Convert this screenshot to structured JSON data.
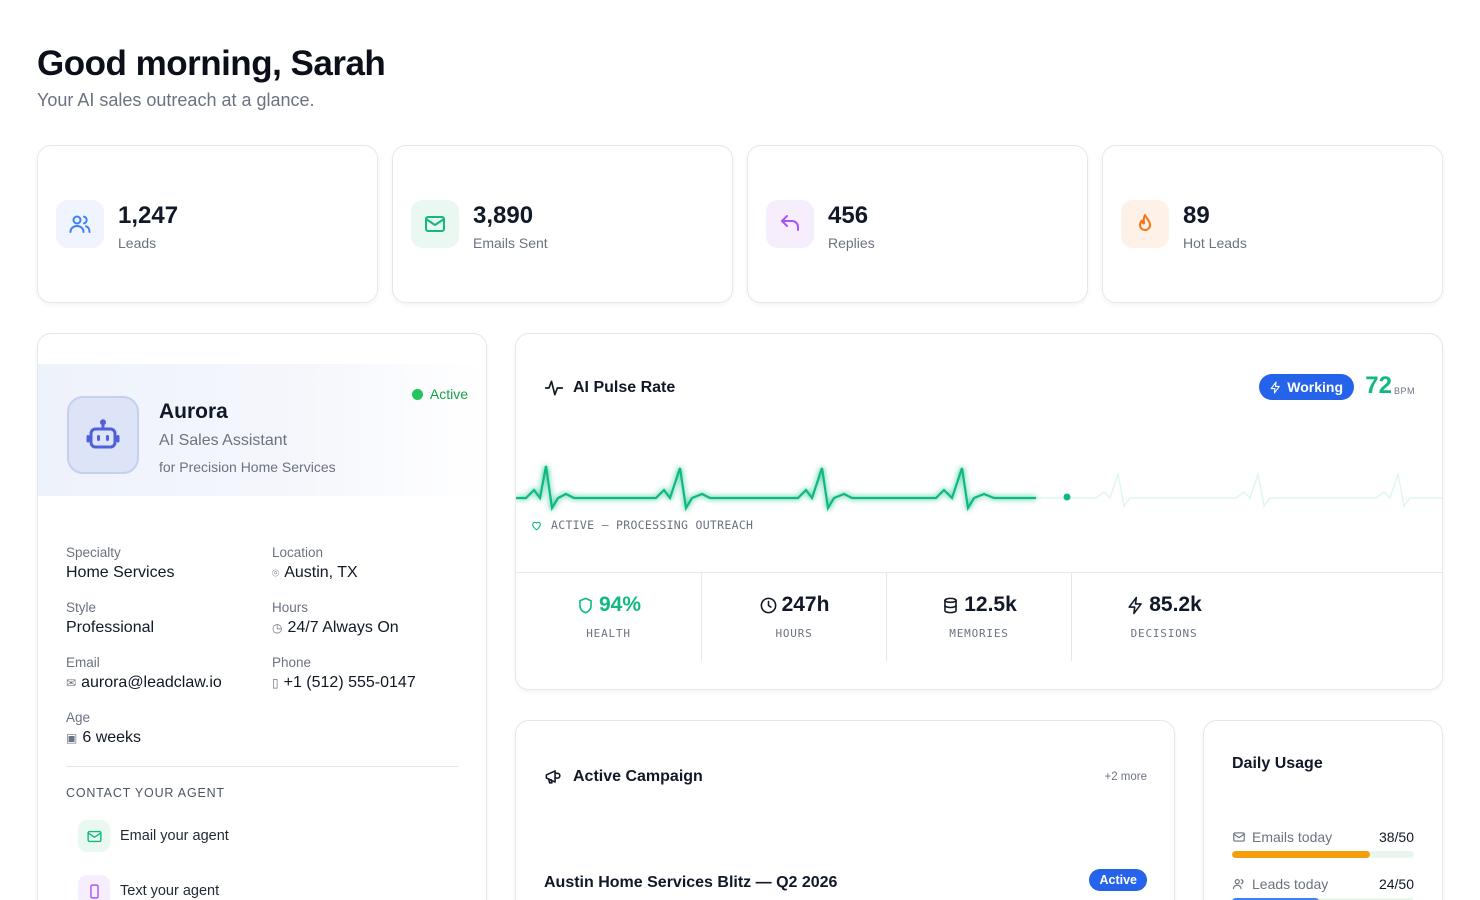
{
  "header": {
    "greeting": "Good morning, Sarah",
    "subtitle": "Your AI sales outreach at a glance."
  },
  "stats": [
    {
      "value": "1,247",
      "label": "Leads",
      "icon": "users-icon",
      "color": "#3b82f6",
      "bg": "#eff4fe"
    },
    {
      "value": "3,890",
      "label": "Emails Sent",
      "icon": "mail-icon",
      "color": "#10b981",
      "bg": "#e9f8f1"
    },
    {
      "value": "456",
      "label": "Replies",
      "icon": "reply-icon",
      "color": "#a855f7",
      "bg": "#f6eefd"
    },
    {
      "value": "89",
      "label": "Hot Leads",
      "icon": "flame-icon",
      "color": "#f97316",
      "bg": "#fef1e7"
    }
  ],
  "agent": {
    "name": "Aurora",
    "role": "AI Sales Assistant",
    "company": "for Precision Home Services",
    "status": "Active",
    "fields": {
      "specialty": {
        "label": "Specialty",
        "value": "Home Services"
      },
      "location": {
        "label": "Location",
        "value": "Austin, TX"
      },
      "style": {
        "label": "Style",
        "value": "Professional"
      },
      "hours": {
        "label": "Hours",
        "value": "24/7 Always On"
      },
      "email": {
        "label": "Email",
        "value": "aurora@leadclaw.io"
      },
      "phone": {
        "label": "Phone",
        "value": "+1 (512) 555-0147"
      },
      "age": {
        "label": "Age",
        "value": "6 weeks"
      }
    },
    "contact_title": "CONTACT YOUR AGENT",
    "contact": {
      "email_label": "Email your agent",
      "text_label": "Text your agent"
    }
  },
  "pulse": {
    "title": "AI Pulse Rate",
    "badge": "Working",
    "bpm": "72",
    "bpm_unit": "BPM",
    "status": "ACTIVE — PROCESSING OUTREACH",
    "metrics": [
      {
        "value": "94%",
        "label": "HEALTH",
        "icon": "shield-icon",
        "color": "#10b981"
      },
      {
        "value": "247h",
        "label": "HOURS",
        "icon": "clock-icon",
        "color": "#111827"
      },
      {
        "value": "12.5k",
        "label": "MEMORIES",
        "icon": "database-icon",
        "color": "#111827"
      },
      {
        "value": "85.2k",
        "label": "DECISIONS",
        "icon": "bolt-icon",
        "color": "#111827"
      }
    ],
    "accent": "#10b981"
  },
  "campaign": {
    "title": "Active Campaign",
    "more": "+2 more",
    "name": "Austin Home Services Blitz — Q2 2026",
    "badge": "Active"
  },
  "usage": {
    "title": "Daily Usage",
    "rows": [
      {
        "label": "Emails today",
        "value": "38/50",
        "fraction": 0.76,
        "color": "#f59e0b",
        "icon": "mail-icon"
      },
      {
        "label": "Leads today",
        "value": "24/50",
        "fraction": 0.48,
        "color": "#3b82f6",
        "icon": "users-icon"
      }
    ]
  }
}
